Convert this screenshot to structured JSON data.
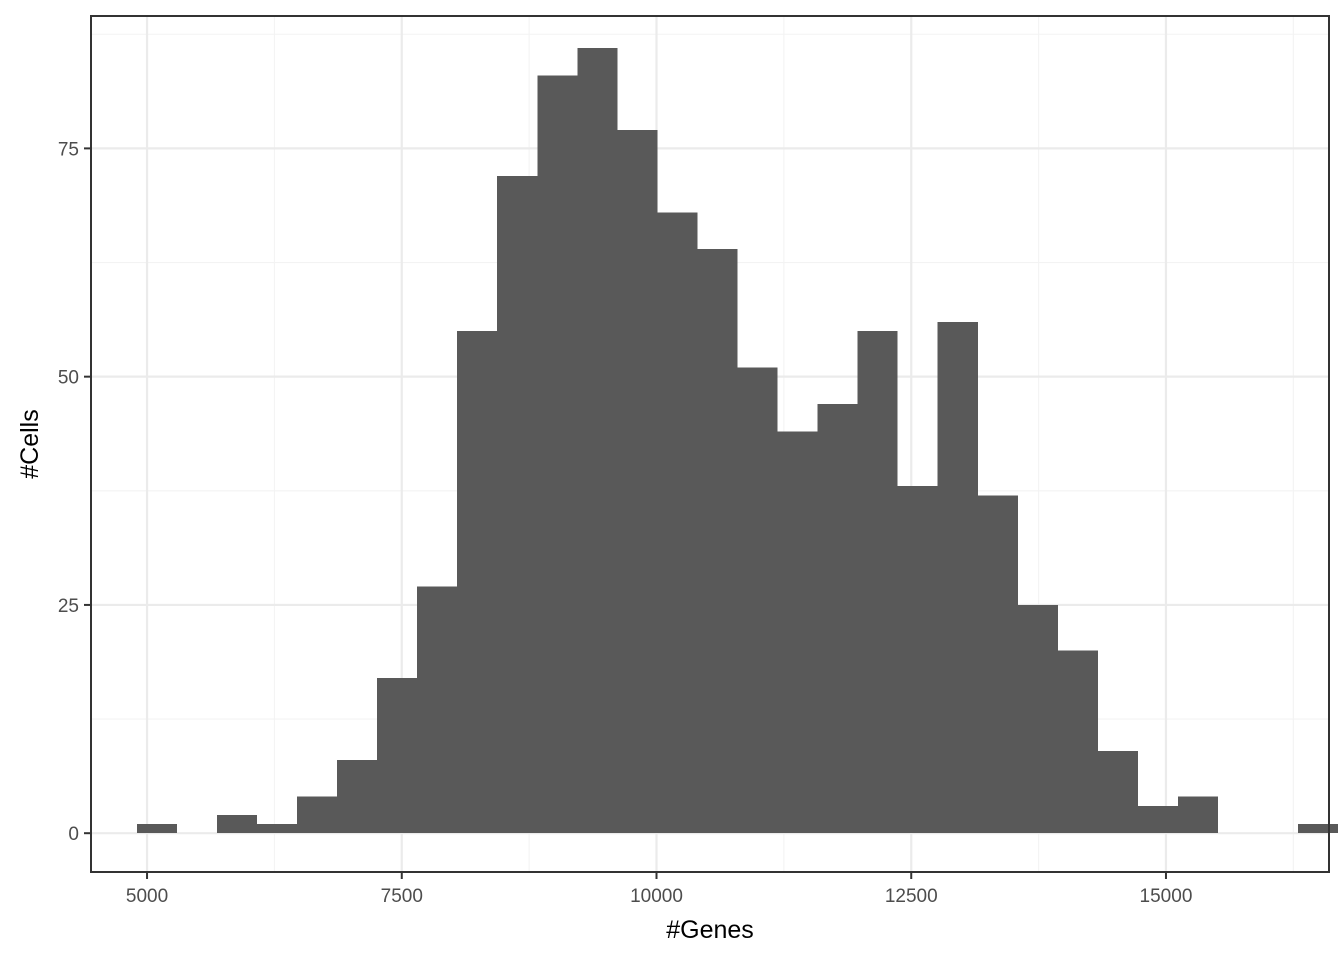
{
  "chart_data": {
    "type": "bar",
    "title": "",
    "xlabel": "#Genes",
    "ylabel": "#Cells",
    "xlim": [
      4450,
      16600
    ],
    "ylim": [
      -4.25,
      89.5
    ],
    "x_ticks": [
      5000,
      7500,
      10000,
      12500,
      15000
    ],
    "x_tick_labels": [
      "5000",
      "7500",
      "10000",
      "12500",
      "15000"
    ],
    "y_ticks": [
      0,
      25,
      50,
      75
    ],
    "y_tick_labels": [
      "0",
      "25",
      "50",
      "75"
    ],
    "grid": true,
    "bin_width": 393,
    "series": [
      {
        "bins": [
          {
            "x0": 4900,
            "x1": 5293,
            "count": 1
          },
          {
            "x0": 5293,
            "x1": 5686,
            "count": 0
          },
          {
            "x0": 5686,
            "x1": 6079,
            "count": 2
          },
          {
            "x0": 6079,
            "x1": 6472,
            "count": 1
          },
          {
            "x0": 6472,
            "x1": 6865,
            "count": 4
          },
          {
            "x0": 6865,
            "x1": 7258,
            "count": 8
          },
          {
            "x0": 7258,
            "x1": 7651,
            "count": 17
          },
          {
            "x0": 7651,
            "x1": 8044,
            "count": 27
          },
          {
            "x0": 8044,
            "x1": 8437,
            "count": 55
          },
          {
            "x0": 8437,
            "x1": 8830,
            "count": 72
          },
          {
            "x0": 8830,
            "x1": 9223,
            "count": 83
          },
          {
            "x0": 9223,
            "x1": 9616,
            "count": 86
          },
          {
            "x0": 9616,
            "x1": 10009,
            "count": 77
          },
          {
            "x0": 10009,
            "x1": 10402,
            "count": 68
          },
          {
            "x0": 10402,
            "x1": 10795,
            "count": 64
          },
          {
            "x0": 10795,
            "x1": 11188,
            "count": 51
          },
          {
            "x0": 11188,
            "x1": 11581,
            "count": 44
          },
          {
            "x0": 11581,
            "x1": 11974,
            "count": 47
          },
          {
            "x0": 11974,
            "x1": 12367,
            "count": 55
          },
          {
            "x0": 12367,
            "x1": 12760,
            "count": 38
          },
          {
            "x0": 12760,
            "x1": 13153,
            "count": 56
          },
          {
            "x0": 13153,
            "x1": 13546,
            "count": 37
          },
          {
            "x0": 13546,
            "x1": 13939,
            "count": 25
          },
          {
            "x0": 13939,
            "x1": 14332,
            "count": 20
          },
          {
            "x0": 14332,
            "x1": 14725,
            "count": 9
          },
          {
            "x0": 14725,
            "x1": 15118,
            "count": 3
          },
          {
            "x0": 15118,
            "x1": 15511,
            "count": 4
          },
          {
            "x0": 15511,
            "x1": 15904,
            "count": 0
          },
          {
            "x0": 15904,
            "x1": 16297,
            "count": 0
          },
          {
            "x0": 16297,
            "x1": 16690,
            "count": 1
          }
        ]
      }
    ],
    "colors": {
      "bar": "#595959",
      "grid_major": "#ebebeb",
      "grid_minor": "#f3f3f3",
      "panel_border": "#333333",
      "tick_text": "#4d4d4d"
    }
  }
}
